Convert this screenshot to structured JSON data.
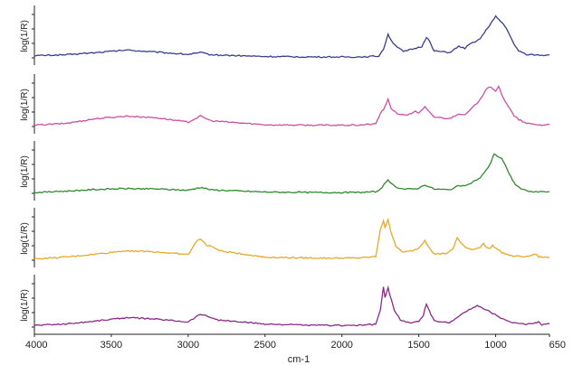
{
  "chart_data": {
    "type": "line",
    "layout": "stacked-panels",
    "xlabel": "cm-1",
    "x_reversed": true,
    "xlim": [
      4000,
      650
    ],
    "x_ticks": [
      "4000",
      "3500",
      "3000",
      "2500",
      "2000",
      "1500",
      "1000",
      "650"
    ],
    "grid": false,
    "panels": [
      {
        "ylabel": "log(1/R)",
        "color": "#3a3d8f",
        "points": [
          [
            4000,
            0.05
          ],
          [
            3800,
            0.07
          ],
          [
            3600,
            0.12
          ],
          [
            3400,
            0.18
          ],
          [
            3200,
            0.13
          ],
          [
            3000,
            0.08
          ],
          [
            2920,
            0.12
          ],
          [
            2850,
            0.07
          ],
          [
            2500,
            0.03
          ],
          [
            2200,
            0.02
          ],
          [
            1900,
            0.02
          ],
          [
            1760,
            0.04
          ],
          [
            1730,
            0.2
          ],
          [
            1700,
            0.55
          ],
          [
            1680,
            0.4
          ],
          [
            1640,
            0.25
          ],
          [
            1600,
            0.14
          ],
          [
            1540,
            0.2
          ],
          [
            1480,
            0.26
          ],
          [
            1450,
            0.48
          ],
          [
            1430,
            0.38
          ],
          [
            1400,
            0.16
          ],
          [
            1300,
            0.12
          ],
          [
            1240,
            0.26
          ],
          [
            1200,
            0.22
          ],
          [
            1160,
            0.33
          ],
          [
            1100,
            0.44
          ],
          [
            1050,
            0.7
          ],
          [
            1020,
            0.85
          ],
          [
            1000,
            0.95
          ],
          [
            980,
            0.88
          ],
          [
            950,
            0.78
          ],
          [
            920,
            0.62
          ],
          [
            880,
            0.3
          ],
          [
            850,
            0.16
          ],
          [
            800,
            0.08
          ],
          [
            700,
            0.06
          ],
          [
            650,
            0.07
          ]
        ]
      },
      {
        "ylabel": "log(1/R)",
        "color": "#cc4fa6",
        "points": [
          [
            4000,
            0.03
          ],
          [
            3800,
            0.07
          ],
          [
            3600,
            0.18
          ],
          [
            3400,
            0.24
          ],
          [
            3200,
            0.2
          ],
          [
            3000,
            0.1
          ],
          [
            2920,
            0.24
          ],
          [
            2850,
            0.13
          ],
          [
            2500,
            0.04
          ],
          [
            2200,
            0.03
          ],
          [
            1900,
            0.03
          ],
          [
            1780,
            0.06
          ],
          [
            1750,
            0.3
          ],
          [
            1720,
            0.45
          ],
          [
            1700,
            0.62
          ],
          [
            1680,
            0.42
          ],
          [
            1640,
            0.3
          ],
          [
            1600,
            0.26
          ],
          [
            1560,
            0.28
          ],
          [
            1520,
            0.36
          ],
          [
            1500,
            0.3
          ],
          [
            1460,
            0.45
          ],
          [
            1440,
            0.36
          ],
          [
            1400,
            0.22
          ],
          [
            1300,
            0.18
          ],
          [
            1240,
            0.3
          ],
          [
            1200,
            0.26
          ],
          [
            1160,
            0.4
          ],
          [
            1100,
            0.62
          ],
          [
            1060,
            0.88
          ],
          [
            1040,
            0.92
          ],
          [
            1020,
            0.88
          ],
          [
            1000,
            0.8
          ],
          [
            980,
            0.92
          ],
          [
            960,
            0.74
          ],
          [
            940,
            0.6
          ],
          [
            920,
            0.48
          ],
          [
            880,
            0.24
          ],
          [
            850,
            0.16
          ],
          [
            800,
            0.07
          ],
          [
            700,
            0.03
          ],
          [
            650,
            0.05
          ]
        ]
      },
      {
        "ylabel": "log(1/R)",
        "color": "#2e8a2e",
        "points": [
          [
            4000,
            0.02
          ],
          [
            3800,
            0.05
          ],
          [
            3600,
            0.09
          ],
          [
            3400,
            0.11
          ],
          [
            3200,
            0.1
          ],
          [
            3000,
            0.07
          ],
          [
            2920,
            0.14
          ],
          [
            2850,
            0.08
          ],
          [
            2500,
            0.03
          ],
          [
            2200,
            0.02
          ],
          [
            1900,
            0.02
          ],
          [
            1770,
            0.04
          ],
          [
            1740,
            0.14
          ],
          [
            1700,
            0.3
          ],
          [
            1680,
            0.22
          ],
          [
            1640,
            0.14
          ],
          [
            1600,
            0.1
          ],
          [
            1540,
            0.1
          ],
          [
            1500,
            0.12
          ],
          [
            1460,
            0.2
          ],
          [
            1440,
            0.16
          ],
          [
            1400,
            0.1
          ],
          [
            1300,
            0.08
          ],
          [
            1240,
            0.18
          ],
          [
            1200,
            0.16
          ],
          [
            1160,
            0.24
          ],
          [
            1100,
            0.36
          ],
          [
            1060,
            0.54
          ],
          [
            1030,
            0.72
          ],
          [
            1010,
            0.92
          ],
          [
            990,
            0.86
          ],
          [
            960,
            0.8
          ],
          [
            940,
            0.66
          ],
          [
            920,
            0.52
          ],
          [
            890,
            0.3
          ],
          [
            860,
            0.16
          ],
          [
            820,
            0.08
          ],
          [
            750,
            0.03
          ],
          [
            650,
            0.04
          ]
        ]
      },
      {
        "ylabel": "log(1/R)",
        "color": "#e8a828",
        "points": [
          [
            4000,
            0.03
          ],
          [
            3800,
            0.07
          ],
          [
            3600,
            0.14
          ],
          [
            3400,
            0.22
          ],
          [
            3200,
            0.19
          ],
          [
            3000,
            0.13
          ],
          [
            2940,
            0.46
          ],
          [
            2920,
            0.5
          ],
          [
            2880,
            0.34
          ],
          [
            2850,
            0.33
          ],
          [
            2800,
            0.22
          ],
          [
            2500,
            0.07
          ],
          [
            2200,
            0.05
          ],
          [
            1900,
            0.05
          ],
          [
            1780,
            0.08
          ],
          [
            1750,
            0.72
          ],
          [
            1730,
            0.9
          ],
          [
            1720,
            0.76
          ],
          [
            1700,
            0.94
          ],
          [
            1680,
            0.64
          ],
          [
            1650,
            0.32
          ],
          [
            1600,
            0.18
          ],
          [
            1540,
            0.22
          ],
          [
            1500,
            0.28
          ],
          [
            1460,
            0.46
          ],
          [
            1440,
            0.34
          ],
          [
            1400,
            0.14
          ],
          [
            1320,
            0.16
          ],
          [
            1280,
            0.24
          ],
          [
            1250,
            0.52
          ],
          [
            1230,
            0.42
          ],
          [
            1200,
            0.3
          ],
          [
            1160,
            0.24
          ],
          [
            1100,
            0.3
          ],
          [
            1080,
            0.4
          ],
          [
            1060,
            0.3
          ],
          [
            1040,
            0.26
          ],
          [
            1020,
            0.34
          ],
          [
            1000,
            0.28
          ],
          [
            960,
            0.18
          ],
          [
            900,
            0.1
          ],
          [
            800,
            0.08
          ],
          [
            740,
            0.14
          ],
          [
            720,
            0.08
          ],
          [
            650,
            0.06
          ]
        ]
      },
      {
        "ylabel": "log(1/R)",
        "color": "#8a2a8a",
        "points": [
          [
            4000,
            0.04
          ],
          [
            3800,
            0.07
          ],
          [
            3600,
            0.14
          ],
          [
            3400,
            0.22
          ],
          [
            3200,
            0.18
          ],
          [
            3000,
            0.12
          ],
          [
            2920,
            0.3
          ],
          [
            2850,
            0.22
          ],
          [
            2800,
            0.16
          ],
          [
            2500,
            0.07
          ],
          [
            2200,
            0.04
          ],
          [
            1900,
            0.04
          ],
          [
            1780,
            0.06
          ],
          [
            1750,
            0.4
          ],
          [
            1730,
            0.92
          ],
          [
            1720,
            0.68
          ],
          [
            1700,
            0.9
          ],
          [
            1690,
            0.76
          ],
          [
            1660,
            0.4
          ],
          [
            1620,
            0.16
          ],
          [
            1560,
            0.1
          ],
          [
            1500,
            0.12
          ],
          [
            1470,
            0.28
          ],
          [
            1450,
            0.54
          ],
          [
            1430,
            0.36
          ],
          [
            1400,
            0.14
          ],
          [
            1300,
            0.1
          ],
          [
            1240,
            0.26
          ],
          [
            1200,
            0.34
          ],
          [
            1160,
            0.42
          ],
          [
            1120,
            0.5
          ],
          [
            1100,
            0.46
          ],
          [
            1060,
            0.4
          ],
          [
            1020,
            0.32
          ],
          [
            980,
            0.24
          ],
          [
            940,
            0.16
          ],
          [
            900,
            0.1
          ],
          [
            800,
            0.06
          ],
          [
            720,
            0.12
          ],
          [
            700,
            0.06
          ],
          [
            650,
            0.08
          ]
        ]
      }
    ]
  }
}
